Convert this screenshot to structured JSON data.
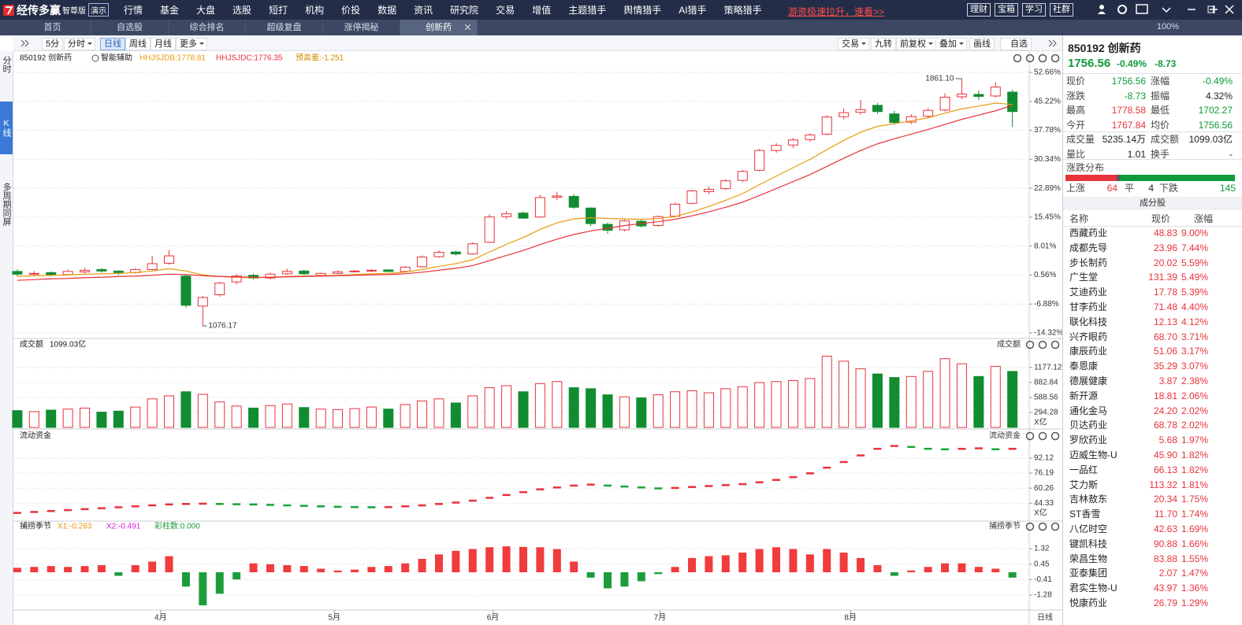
{
  "app": {
    "logo": "经传多赢",
    "edition": "智尊版",
    "mode": "演示",
    "menu": [
      "行情",
      "基金",
      "大盘",
      "选股",
      "短打",
      "机构",
      "价投",
      "数据",
      "资讯",
      "研究院",
      "交易",
      "增值",
      "主题猎手",
      "舆情猎手",
      "AI猎手",
      "策略猎手"
    ],
    "promo": "游资极速拉升，速看>>",
    "buttons": [
      "理财",
      "宝箱",
      "学习",
      "社群"
    ]
  },
  "tabs": {
    "items": [
      "首页",
      "自选股",
      "综合排名",
      "超级复盘",
      "涨停揭秘",
      "创新药"
    ],
    "active": 5,
    "zoom": "100%"
  },
  "side_tabs": {
    "items": [
      "分时",
      "K线",
      "多周期同屏"
    ],
    "active": 1
  },
  "toolbar": {
    "periods": [
      "5分",
      "分时",
      "日线",
      "周线",
      "月线",
      "更多"
    ],
    "active": 2,
    "tools": [
      "交易",
      "九转",
      "前复权",
      "叠加",
      "画线",
      "自选"
    ]
  },
  "chart_data": [
    {
      "type": "candlestick",
      "title": "850192 创新药",
      "assist": "智能辅助",
      "up_color": "#e8323c",
      "down_color": "#118c31",
      "ohlc": [
        [
          1.5,
          2.0,
          0.2,
          0.8
        ],
        [
          0.8,
          1.6,
          0.5,
          1.0
        ],
        [
          1.2,
          1.5,
          0.2,
          0.6
        ],
        [
          0.7,
          2.0,
          0.5,
          1.5
        ],
        [
          1.4,
          2.4,
          1.0,
          1.8
        ],
        [
          2.0,
          2.3,
          1.2,
          1.6
        ],
        [
          1.6,
          1.8,
          0.6,
          1.2
        ],
        [
          1.2,
          2.3,
          0.9,
          2.0
        ],
        [
          2.0,
          5.5,
          1.8,
          3.5
        ],
        [
          3.6,
          7.0,
          3.2,
          5.5
        ],
        [
          0.3,
          0.8,
          -7.8,
          -7.2
        ],
        [
          -7.4,
          -4.8,
          -12.5,
          -5.2
        ],
        [
          -4.5,
          -1.2,
          -5.0,
          -1.5
        ],
        [
          -1.2,
          0.8,
          -1.8,
          0.3
        ],
        [
          0.5,
          0.9,
          -0.6,
          -0.2
        ],
        [
          -0.2,
          1.2,
          -0.5,
          0.8
        ],
        [
          0.9,
          2.2,
          0.6,
          1.5
        ],
        [
          1.6,
          1.9,
          0.6,
          0.9
        ],
        [
          0.5,
          1.2,
          0.2,
          1.0
        ],
        [
          1.0,
          1.8,
          0.8,
          1.4
        ],
        [
          1.5,
          1.9,
          1.2,
          1.6
        ],
        [
          1.7,
          2.1,
          1.3,
          1.8
        ],
        [
          1.9,
          2.0,
          1.3,
          1.5
        ],
        [
          1.5,
          2.9,
          1.3,
          2.6
        ],
        [
          2.7,
          5.6,
          2.5,
          5.2
        ],
        [
          5.3,
          6.9,
          5.0,
          6.4
        ],
        [
          6.5,
          6.8,
          5.6,
          6.0
        ],
        [
          6.0,
          9.0,
          5.8,
          8.6
        ],
        [
          9.0,
          16.2,
          8.8,
          15.5
        ],
        [
          15.6,
          17.0,
          15.0,
          16.3
        ],
        [
          16.5,
          16.9,
          15.0,
          15.2
        ],
        [
          15.5,
          21.2,
          15.3,
          20.5
        ],
        [
          20.6,
          22.0,
          19.8,
          20.9
        ],
        [
          20.8,
          21.4,
          17.6,
          18.0
        ],
        [
          17.8,
          18.0,
          13.2,
          13.8
        ],
        [
          13.6,
          14.0,
          11.2,
          12.1
        ],
        [
          12.2,
          14.8,
          11.8,
          14.5
        ],
        [
          14.4,
          14.9,
          12.8,
          13.2
        ],
        [
          13.3,
          15.9,
          13.0,
          15.6
        ],
        [
          15.7,
          19.2,
          15.4,
          18.8
        ],
        [
          19.0,
          22.5,
          18.8,
          22.2
        ],
        [
          22.0,
          23.3,
          21.4,
          22.6
        ],
        [
          22.8,
          25.2,
          22.4,
          24.8
        ],
        [
          24.9,
          27.6,
          24.5,
          27.2
        ],
        [
          27.5,
          33.0,
          27.2,
          32.6
        ],
        [
          32.6,
          34.5,
          32.0,
          33.9
        ],
        [
          34.0,
          35.8,
          33.2,
          35.3
        ],
        [
          35.4,
          37.0,
          34.8,
          36.6
        ],
        [
          36.8,
          41.6,
          36.5,
          41.2
        ],
        [
          41.3,
          43.4,
          40.6,
          42.3
        ],
        [
          42.4,
          45.6,
          41.8,
          43.1
        ],
        [
          44.2,
          44.8,
          42.0,
          42.6
        ],
        [
          42.0,
          42.8,
          39.2,
          39.8
        ],
        [
          39.9,
          41.9,
          39.4,
          41.3
        ],
        [
          41.4,
          43.5,
          40.8,
          42.9
        ],
        [
          43.0,
          47.3,
          42.6,
          46.3
        ],
        [
          46.4,
          51.05,
          45.8,
          47.1
        ],
        [
          47.0,
          48.0,
          45.6,
          46.5
        ],
        [
          46.6,
          50.2,
          46.2,
          48.9
        ],
        [
          47.6,
          48.2,
          38.6,
          42.6
        ]
      ],
      "series": [
        {
          "name": "HHJSJDB:1778.81",
          "color": "#e89a0c",
          "values": [
            0.2,
            0.4,
            0.5,
            0.6,
            0.8,
            0.9,
            1.0,
            1.2,
            1.6,
            2.2,
            1.6,
            0.6,
            0.2,
            0.0,
            -0.1,
            0.0,
            0.2,
            0.3,
            0.4,
            0.5,
            0.7,
            0.9,
            1.0,
            1.3,
            2.0,
            2.8,
            3.5,
            4.5,
            6.5,
            8.5,
            10.2,
            12.3,
            14.0,
            15.0,
            15.3,
            15.1,
            15.0,
            14.9,
            15.1,
            15.6,
            16.8,
            18.2,
            19.8,
            21.5,
            23.8,
            26.0,
            28.2,
            30.3,
            32.8,
            35.2,
            37.3,
            38.8,
            39.5,
            40.2,
            41.0,
            42.2,
            43.3,
            44.0,
            44.8,
            44.4
          ]
        },
        {
          "name": "HHJSJDC:1776.35",
          "color": "#e8323c",
          "values": [
            -0.8,
            -0.6,
            -0.4,
            -0.3,
            -0.1,
            0.0,
            0.2,
            0.3,
            0.5,
            0.8,
            0.7,
            0.4,
            0.2,
            0.1,
            0.0,
            0.0,
            0.1,
            0.2,
            0.3,
            0.4,
            0.5,
            0.6,
            0.7,
            0.9,
            1.3,
            1.8,
            2.3,
            3.0,
            4.3,
            5.6,
            6.9,
            8.4,
            9.8,
            11.0,
            11.9,
            12.6,
            13.3,
            13.8,
            14.3,
            14.9,
            15.8,
            16.8,
            18.0,
            19.3,
            21.0,
            22.8,
            24.6,
            26.4,
            28.5,
            30.6,
            32.6,
            34.3,
            35.6,
            36.8,
            38.0,
            39.3,
            40.6,
            41.7,
            42.8,
            44.2
          ]
        }
      ],
      "indicator": "预高差:-1.251",
      "indicator_color": "#d58b00",
      "high_label": "1861.10",
      "low_label": "1076.17",
      "ylim": [
        -15.33,
        54.08
      ],
      "yticks": [
        {
          "value": 52.66,
          "label": "52.66%"
        },
        {
          "value": 45.22,
          "label": "45.22%"
        },
        {
          "value": 37.78,
          "label": "37.78%"
        },
        {
          "value": 30.34,
          "label": "30.34%"
        },
        {
          "value": 22.89,
          "label": "22.89%"
        },
        {
          "value": 15.45,
          "label": "15.45%"
        },
        {
          "value": 8.01,
          "label": "8.01%"
        },
        {
          "value": 0.56,
          "label": "0.56%"
        },
        {
          "value": -6.88,
          "label": "-6.88%"
        },
        {
          "value": -14.32,
          "label": "-14.32%"
        }
      ],
      "xlim": [
        -0.23,
        59.95
      ],
      "xticks": [
        {
          "value": 8.5,
          "label": "4月"
        },
        {
          "value": 18.8,
          "label": "5月"
        },
        {
          "value": 28.2,
          "label": "6月"
        },
        {
          "value": 38.1,
          "label": "7月"
        },
        {
          "value": 49.4,
          "label": "8月"
        }
      ],
      "grid": true
    },
    {
      "type": "bar",
      "title": "成交额",
      "value_label": "1099.03亿",
      "unit": "X亿",
      "values": [
        330,
        310,
        340,
        360,
        380,
        300,
        320,
        400,
        560,
        620,
        700,
        650,
        500,
        420,
        380,
        430,
        460,
        390,
        360,
        350,
        370,
        400,
        360,
        450,
        520,
        560,
        480,
        620,
        780,
        820,
        700,
        860,
        900,
        780,
        760,
        640,
        600,
        580,
        640,
        700,
        720,
        680,
        760,
        800,
        880,
        900,
        920,
        960,
        1400,
        1300,
        1150,
        1050,
        980,
        1000,
        1100,
        1350,
        1250,
        1000,
        1200,
        1099.03
      ],
      "ylim": [
        0,
        1700
      ],
      "yticks": [
        1177.12,
        882.84,
        588.56,
        294.28
      ]
    },
    {
      "type": "dash",
      "title": "流动资金",
      "unit": "X亿",
      "values": [
        34,
        35,
        36,
        37,
        38,
        39,
        40,
        41,
        42,
        43,
        43.5,
        43.8,
        43.5,
        43.2,
        43,
        42.5,
        42,
        41.5,
        41,
        40.5,
        40.2,
        40,
        40.2,
        41,
        42,
        43.5,
        45,
        47,
        50,
        53,
        56,
        59,
        61,
        63,
        64,
        63,
        62,
        61,
        60,
        60.5,
        61.5,
        62.5,
        63.5,
        64.5,
        66.5,
        69,
        72,
        76,
        82,
        88,
        95,
        102,
        105,
        104,
        102,
        101.5,
        102,
        102.5,
        101.5,
        102
      ],
      "ylim": [
        27,
        110.5
      ],
      "yticks": [
        92.12,
        76.19,
        60.26,
        44.33
      ],
      "up_color": "#e8323c",
      "down_color": "#19a33a"
    },
    {
      "type": "oscillator",
      "title": "捕捞季节",
      "legend": [
        {
          "text": "X1:-0.263",
          "color": "#e89a0c"
        },
        {
          "text": "X2:-0.491",
          "color": "#d21fd2"
        },
        {
          "text": "彩柱数:0.000",
          "color": "#1a9a3a"
        }
      ],
      "values": [
        0.25,
        0.3,
        0.35,
        0.3,
        0.35,
        0.4,
        -0.2,
        0.4,
        0.6,
        0.9,
        -0.8,
        -1.85,
        -1.2,
        -0.4,
        0.5,
        0.45,
        0.4,
        0.35,
        0.2,
        0.1,
        0.15,
        0.3,
        0.35,
        0.5,
        0.75,
        1.0,
        1.2,
        1.3,
        1.4,
        1.45,
        1.42,
        1.4,
        1.3,
        0.6,
        -0.3,
        -0.9,
        -0.8,
        -0.5,
        -0.1,
        0.3,
        0.8,
        0.9,
        0.95,
        1.1,
        1.3,
        1.4,
        1.3,
        1.0,
        1.3,
        1.1,
        0.8,
        0.4,
        -0.2,
        0.1,
        0.3,
        0.5,
        0.5,
        0.3,
        0.2,
        -0.3
      ],
      "ylim": [
        -1.98,
        2.07
      ],
      "yticks": [
        1.32,
        0.45,
        -0.41,
        -1.28
      ],
      "up_color": "#f03c3c",
      "down_color": "#1b9e3a"
    }
  ],
  "quote": {
    "title": "850192 创新药",
    "price": "1756.56",
    "change_pct": "-0.49%",
    "change": "-8.73",
    "rows": [
      [
        {
          "label": "现价",
          "value": "1756.56",
          "color": "down"
        },
        {
          "label": "涨幅",
          "value": "-0.49%",
          "color": "down"
        }
      ],
      [
        {
          "label": "涨跌",
          "value": "-8.73",
          "color": "down"
        },
        {
          "label": "振幅",
          "value": "4.32%",
          "color": "flat"
        }
      ],
      [
        {
          "label": "最高",
          "value": "1778.58",
          "color": "up"
        },
        {
          "label": "最低",
          "value": "1702.27",
          "color": "down"
        }
      ],
      [
        {
          "label": "今开",
          "value": "1767.84",
          "color": "up"
        },
        {
          "label": "均价",
          "value": "1756.56",
          "color": "down"
        }
      ],
      [
        {
          "label": "成交量",
          "value": "5235.14万",
          "color": "flat"
        },
        {
          "label": "成交额",
          "value": "1099.03亿",
          "color": "flat"
        }
      ],
      [
        {
          "label": "量比",
          "value": "1.01",
          "color": "flat"
        },
        {
          "label": "换手",
          "value": "-",
          "color": "flat"
        }
      ]
    ]
  },
  "distribution": {
    "title": "涨跌分布",
    "up_label": "上涨",
    "up": 64,
    "flat_label": "平",
    "flat": 4,
    "down_label": "下跌",
    "down": 145
  },
  "constituents": {
    "title": "成分股",
    "columns": [
      "名称",
      "现价",
      "涨幅"
    ],
    "rows": [
      [
        "西藏药业",
        "48.83",
        "9.00%"
      ],
      [
        "成都先导",
        "23.96",
        "7.44%"
      ],
      [
        "步长制药",
        "20.02",
        "5.59%"
      ],
      [
        "广生堂",
        "131.39",
        "5.49%"
      ],
      [
        "艾迪药业",
        "17.78",
        "5.39%"
      ],
      [
        "甘李药业",
        "71.48",
        "4.40%"
      ],
      [
        "联化科技",
        "12.13",
        "4.12%"
      ],
      [
        "兴齐眼药",
        "68.70",
        "3.71%"
      ],
      [
        "康辰药业",
        "51.06",
        "3.17%"
      ],
      [
        "泰恩康",
        "35.29",
        "3.07%"
      ],
      [
        "德展健康",
        "3.87",
        "2.38%"
      ],
      [
        "新开源",
        "18.81",
        "2.06%"
      ],
      [
        "通化金马",
        "24.20",
        "2.02%"
      ],
      [
        "贝达药业",
        "68.78",
        "2.02%"
      ],
      [
        "罗欣药业",
        "5.68",
        "1.97%"
      ],
      [
        "迈威生物-U",
        "45.90",
        "1.82%"
      ],
      [
        "一品红",
        "66.13",
        "1.82%"
      ],
      [
        "艾力斯",
        "113.32",
        "1.81%"
      ],
      [
        "吉林敖东",
        "20.34",
        "1.75%"
      ],
      [
        "ST香雪",
        "11.70",
        "1.74%"
      ],
      [
        "八亿时空",
        "42.63",
        "1.69%"
      ],
      [
        "键凯科技",
        "90.88",
        "1.66%"
      ],
      [
        "荣昌生物",
        "83.88",
        "1.55%"
      ],
      [
        "亚泰集团",
        "2.07",
        "1.47%"
      ],
      [
        "君实生物-U",
        "43.97",
        "1.36%"
      ],
      [
        "悦康药业",
        "26.79",
        "1.29%"
      ]
    ]
  }
}
